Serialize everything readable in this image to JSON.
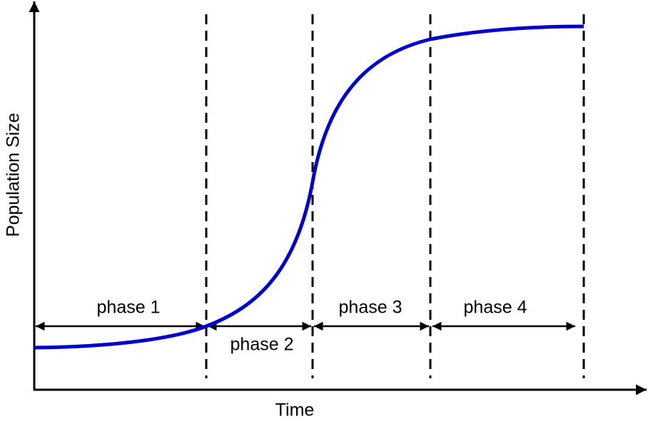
{
  "axes": {
    "y_label": "Population Size",
    "x_label": "Time"
  },
  "phases": [
    {
      "label": "phase 1"
    },
    {
      "label": "phase 2"
    },
    {
      "label": "phase 3"
    },
    {
      "label": "phase 4"
    }
  ]
}
